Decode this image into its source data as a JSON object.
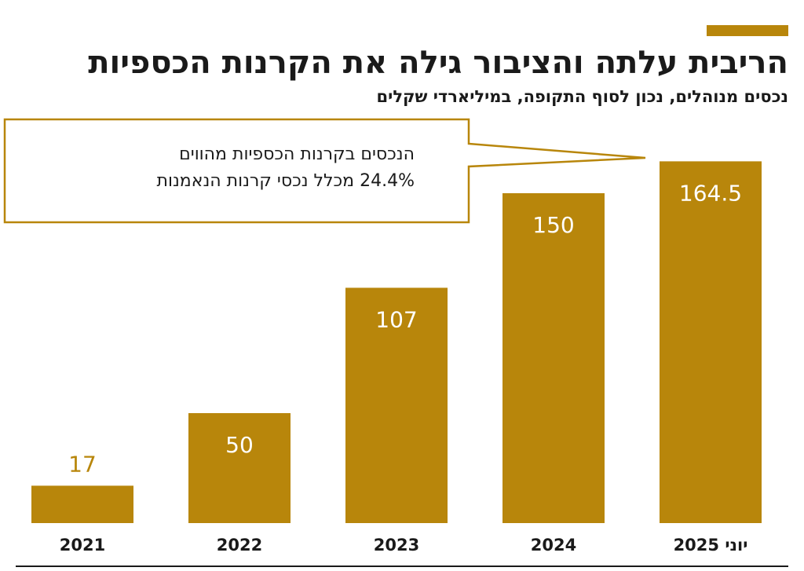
{
  "header": {
    "title": "הריבית עלתה והציבור גילה את הקרנות הכספיות",
    "subtitle": "נכסים מנוהלים, נכון לסוף התקופה, במיליארדי שקלים",
    "accent_color": "#b8860b"
  },
  "callout": {
    "line1": "הנכסים בקרנות הכספיות מהווים",
    "line2": "24.4% מכלל נכסי קרנות הנאמנות"
  },
  "chart_data": {
    "type": "bar",
    "categories": [
      "2021",
      "2022",
      "2023",
      "2024",
      "יוני 2025"
    ],
    "values": [
      17,
      50,
      107,
      150,
      164.5
    ],
    "value_labels": [
      "17",
      "50",
      "107",
      "150",
      "164.5"
    ],
    "title": "הריבית עלתה והציבור גילה את הקרנות הכספיות",
    "subtitle": "נכסים מנוהלים, נכון לסוף התקופה, במיליארדי שקלים",
    "xlabel": "",
    "ylabel": "",
    "ylim": [
      0,
      175
    ],
    "grid": false,
    "legend": "none",
    "bar_color": "#b8860b",
    "label_color_inside": "#ffffff",
    "label_color_outside": "#b8860b"
  }
}
